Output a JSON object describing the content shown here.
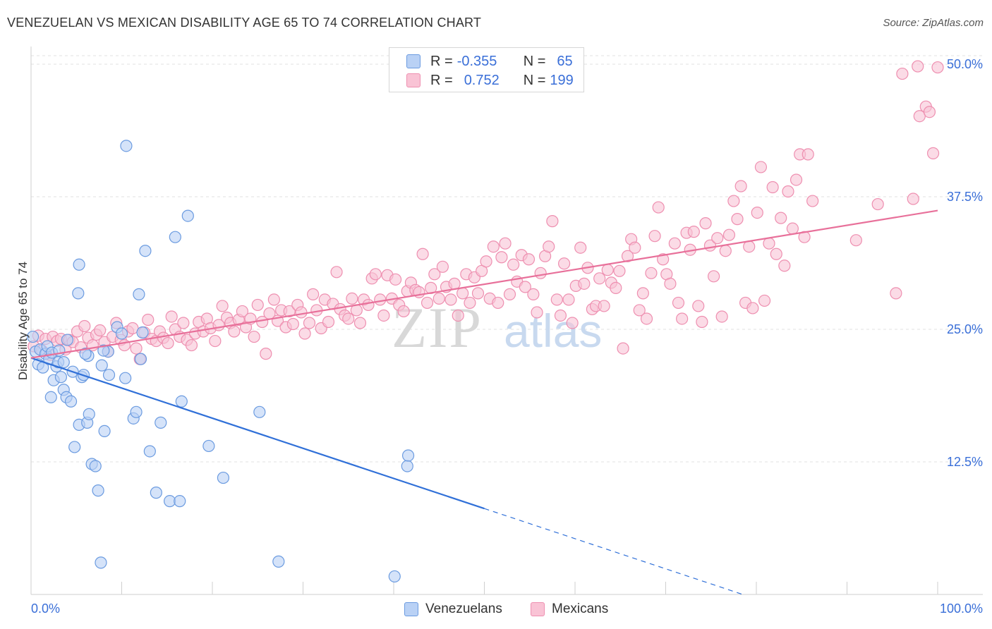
{
  "title": "VENEZUELAN VS MEXICAN DISABILITY AGE 65 TO 74 CORRELATION CHART",
  "source": "Source: ZipAtlas.com",
  "watermark": {
    "zip": "ZIP",
    "atlas": "atlas"
  },
  "legend": {
    "r_label": "R =",
    "n_label": "N =",
    "rows": [
      {
        "r": "-0.355",
        "n": "65",
        "fill": "#b9d1f5",
        "stroke": "#6b9be0"
      },
      {
        "r": "0.752",
        "n": "199",
        "fill": "#f9c3d5",
        "stroke": "#ee8fb0"
      }
    ]
  },
  "bottom_legend": [
    {
      "label": "Venezuelans",
      "fill": "#b9d1f5",
      "stroke": "#6b9be0"
    },
    {
      "label": "Mexicans",
      "fill": "#f9c3d5",
      "stroke": "#ee8fb0"
    }
  ],
  "chart_data": {
    "type": "scatter",
    "title": "VENEZUELAN VS MEXICAN DISABILITY AGE 65 TO 74 CORRELATION CHART",
    "xlabel": "",
    "ylabel": "Disability Age 65 to 74",
    "xlim": [
      0,
      100
    ],
    "ylim": [
      0,
      51
    ],
    "x_tick_labels": [
      "0.0%",
      "100.0%"
    ],
    "y_ticks": [
      12.5,
      25.0,
      37.5,
      50.0
    ],
    "y_tick_labels": [
      "12.5%",
      "25.0%",
      "37.5%",
      "50.0%"
    ],
    "grid": true,
    "series": [
      {
        "name": "Venezuelans",
        "color": "#6b9be0",
        "fill": "#b9d1f5",
        "trend_color": "#3070d8",
        "trend": {
          "x0": 0,
          "y0": 22.3,
          "x1": 50,
          "y1": 8.1,
          "dash_x1": 78.5,
          "dash_y1": 0
        },
        "points": [
          [
            0.2,
            24.3
          ],
          [
            0.5,
            22.9
          ],
          [
            0.8,
            21.7
          ],
          [
            1.0,
            23.1
          ],
          [
            1.3,
            21.4
          ],
          [
            1.6,
            22.7
          ],
          [
            1.8,
            23.4
          ],
          [
            2.0,
            22.2
          ],
          [
            2.3,
            22.8
          ],
          [
            2.5,
            20.2
          ],
          [
            2.2,
            18.6
          ],
          [
            2.8,
            21.5
          ],
          [
            3.0,
            21.9
          ],
          [
            3.3,
            20.5
          ],
          [
            3.6,
            19.3
          ],
          [
            3.9,
            18.6
          ],
          [
            3.6,
            21.9
          ],
          [
            4.4,
            18.2
          ],
          [
            4.6,
            21.0
          ],
          [
            4.8,
            13.9
          ],
          [
            5.3,
            16.0
          ],
          [
            5.6,
            20.5
          ],
          [
            5.8,
            20.7
          ],
          [
            6.2,
            16.2
          ],
          [
            6.4,
            17.0
          ],
          [
            6.7,
            12.3
          ],
          [
            7.1,
            12.1
          ],
          [
            7.4,
            9.8
          ],
          [
            7.8,
            21.6
          ],
          [
            8.1,
            15.4
          ],
          [
            8.5,
            22.9
          ],
          [
            8.6,
            20.7
          ],
          [
            6.3,
            22.5
          ],
          [
            6.0,
            22.7
          ],
          [
            9.5,
            25.2
          ],
          [
            10.0,
            24.6
          ],
          [
            10.4,
            20.4
          ],
          [
            11.3,
            16.6
          ],
          [
            11.6,
            17.2
          ],
          [
            12.1,
            22.2
          ],
          [
            12.3,
            24.7
          ],
          [
            13.1,
            13.5
          ],
          [
            13.8,
            9.6
          ],
          [
            14.3,
            16.2
          ],
          [
            15.3,
            8.8
          ],
          [
            16.4,
            8.8
          ],
          [
            16.6,
            18.2
          ],
          [
            19.6,
            14.0
          ],
          [
            21.2,
            11.0
          ],
          [
            25.2,
            17.2
          ],
          [
            27.3,
            3.1
          ],
          [
            7.7,
            3.0
          ],
          [
            40.1,
            1.7
          ],
          [
            41.5,
            12.1
          ],
          [
            41.6,
            13.1
          ],
          [
            10.5,
            42.3
          ],
          [
            11.9,
            28.3
          ],
          [
            12.6,
            32.4
          ],
          [
            15.9,
            33.7
          ],
          [
            17.3,
            35.7
          ],
          [
            5.3,
            31.1
          ],
          [
            5.2,
            28.4
          ],
          [
            4.0,
            24.0
          ],
          [
            3.1,
            23.0
          ],
          [
            8.0,
            23.0
          ]
        ]
      },
      {
        "name": "Mexicans",
        "color": "#ee8fb0",
        "fill": "#f9c3d5",
        "trend_color": "#e8709a",
        "trend": {
          "x0": 0,
          "y0": 22.3,
          "x1": 100,
          "y1": 36.2
        },
        "points": [
          [
            0.3,
            23.4
          ],
          [
            0.8,
            24.4
          ],
          [
            1.2,
            23.0
          ],
          [
            1.6,
            24.1
          ],
          [
            2.1,
            22.6
          ],
          [
            2.4,
            24.3
          ],
          [
            2.9,
            23.9
          ],
          [
            3.3,
            24.1
          ],
          [
            3.8,
            23.1
          ],
          [
            4.2,
            24.0
          ],
          [
            4.6,
            23.8
          ],
          [
            5.1,
            24.8
          ],
          [
            5.5,
            23.3
          ],
          [
            5.9,
            25.3
          ],
          [
            6.3,
            24.2
          ],
          [
            6.8,
            23.5
          ],
          [
            7.2,
            24.5
          ],
          [
            7.6,
            24.9
          ],
          [
            8.1,
            23.8
          ],
          [
            8.5,
            22.9
          ],
          [
            9.0,
            24.3
          ],
          [
            9.4,
            25.6
          ],
          [
            9.9,
            24.0
          ],
          [
            10.3,
            23.5
          ],
          [
            10.7,
            24.8
          ],
          [
            11.2,
            25.1
          ],
          [
            11.6,
            23.2
          ],
          [
            12.0,
            22.2
          ],
          [
            12.5,
            24.7
          ],
          [
            12.9,
            25.9
          ],
          [
            13.3,
            24.1
          ],
          [
            13.8,
            23.9
          ],
          [
            14.2,
            24.8
          ],
          [
            14.6,
            24.2
          ],
          [
            15.1,
            23.7
          ],
          [
            15.5,
            26.2
          ],
          [
            15.9,
            25.0
          ],
          [
            16.4,
            24.3
          ],
          [
            16.8,
            25.6
          ],
          [
            17.2,
            24.0
          ],
          [
            17.7,
            23.5
          ],
          [
            18.1,
            24.6
          ],
          [
            18.5,
            25.7
          ],
          [
            19.0,
            24.8
          ],
          [
            19.4,
            26.0
          ],
          [
            19.8,
            25.1
          ],
          [
            20.3,
            23.9
          ],
          [
            20.7,
            25.4
          ],
          [
            21.1,
            27.2
          ],
          [
            21.6,
            26.1
          ],
          [
            22.0,
            25.6
          ],
          [
            22.4,
            24.8
          ],
          [
            22.9,
            25.9
          ],
          [
            23.3,
            26.7
          ],
          [
            23.7,
            25.2
          ],
          [
            24.2,
            26.0
          ],
          [
            24.6,
            24.3
          ],
          [
            25.0,
            27.3
          ],
          [
            25.5,
            25.7
          ],
          [
            25.9,
            22.7
          ],
          [
            26.3,
            26.5
          ],
          [
            26.8,
            27.8
          ],
          [
            27.2,
            25.8
          ],
          [
            27.6,
            26.8
          ],
          [
            28.1,
            25.2
          ],
          [
            28.5,
            26.7
          ],
          [
            28.9,
            25.5
          ],
          [
            29.4,
            27.3
          ],
          [
            29.8,
            26.6
          ],
          [
            30.2,
            24.6
          ],
          [
            30.7,
            25.6
          ],
          [
            31.1,
            28.3
          ],
          [
            31.5,
            26.8
          ],
          [
            32.0,
            25.1
          ],
          [
            32.4,
            27.8
          ],
          [
            32.8,
            25.7
          ],
          [
            33.3,
            27.4
          ],
          [
            33.7,
            30.4
          ],
          [
            34.1,
            26.9
          ],
          [
            34.6,
            26.3
          ],
          [
            35.0,
            26.0
          ],
          [
            35.4,
            27.9
          ],
          [
            35.9,
            26.8
          ],
          [
            36.3,
            25.6
          ],
          [
            36.7,
            27.8
          ],
          [
            37.2,
            27.3
          ],
          [
            37.6,
            29.8
          ],
          [
            38.0,
            30.2
          ],
          [
            38.5,
            27.8
          ],
          [
            38.9,
            26.3
          ],
          [
            39.3,
            30.1
          ],
          [
            39.8,
            27.9
          ],
          [
            40.2,
            29.7
          ],
          [
            40.6,
            27.3
          ],
          [
            41.1,
            26.7
          ],
          [
            41.5,
            28.6
          ],
          [
            41.9,
            29.4
          ],
          [
            42.4,
            28.7
          ],
          [
            42.8,
            28.5
          ],
          [
            43.2,
            32.1
          ],
          [
            43.7,
            27.5
          ],
          [
            44.1,
            28.9
          ],
          [
            44.5,
            30.2
          ],
          [
            45.0,
            27.9
          ],
          [
            45.4,
            30.9
          ],
          [
            45.8,
            29.0
          ],
          [
            46.3,
            27.8
          ],
          [
            46.7,
            29.3
          ],
          [
            47.1,
            26.3
          ],
          [
            47.6,
            28.4
          ],
          [
            48.0,
            30.2
          ],
          [
            48.4,
            27.5
          ],
          [
            48.9,
            29.9
          ],
          [
            49.3,
            28.4
          ],
          [
            49.7,
            30.5
          ],
          [
            50.2,
            31.4
          ],
          [
            50.6,
            27.9
          ],
          [
            51.0,
            32.8
          ],
          [
            51.5,
            27.5
          ],
          [
            51.9,
            31.8
          ],
          [
            52.3,
            33.1
          ],
          [
            52.8,
            28.3
          ],
          [
            53.2,
            31.1
          ],
          [
            53.6,
            29.5
          ],
          [
            54.1,
            32.0
          ],
          [
            54.5,
            29.0
          ],
          [
            54.9,
            31.6
          ],
          [
            55.4,
            28.3
          ],
          [
            55.8,
            26.6
          ],
          [
            56.2,
            30.3
          ],
          [
            56.7,
            31.9
          ],
          [
            57.1,
            32.8
          ],
          [
            57.5,
            35.2
          ],
          [
            58.0,
            27.8
          ],
          [
            58.4,
            26.3
          ],
          [
            58.8,
            31.2
          ],
          [
            59.3,
            27.8
          ],
          [
            59.7,
            25.6
          ],
          [
            60.1,
            29.1
          ],
          [
            60.6,
            32.7
          ],
          [
            61.0,
            29.3
          ],
          [
            61.4,
            30.8
          ],
          [
            61.9,
            26.9
          ],
          [
            62.3,
            27.2
          ],
          [
            62.7,
            29.8
          ],
          [
            63.2,
            27.2
          ],
          [
            63.6,
            30.6
          ],
          [
            64.0,
            29.4
          ],
          [
            64.5,
            28.9
          ],
          [
            64.9,
            30.5
          ],
          [
            65.3,
            23.2
          ],
          [
            65.8,
            31.9
          ],
          [
            66.2,
            33.5
          ],
          [
            66.6,
            32.7
          ],
          [
            67.1,
            26.8
          ],
          [
            67.5,
            28.4
          ],
          [
            67.9,
            26.0
          ],
          [
            68.4,
            30.3
          ],
          [
            68.8,
            33.8
          ],
          [
            69.2,
            36.5
          ],
          [
            69.7,
            31.6
          ],
          [
            70.1,
            30.2
          ],
          [
            70.5,
            29.3
          ],
          [
            71.0,
            33.1
          ],
          [
            71.4,
            27.5
          ],
          [
            71.8,
            26.0
          ],
          [
            72.3,
            34.1
          ],
          [
            72.7,
            32.5
          ],
          [
            73.1,
            34.2
          ],
          [
            73.6,
            27.2
          ],
          [
            74.0,
            25.7
          ],
          [
            74.4,
            35.0
          ],
          [
            74.9,
            32.9
          ],
          [
            75.3,
            30.0
          ],
          [
            75.7,
            33.6
          ],
          [
            76.2,
            26.2
          ],
          [
            76.6,
            32.4
          ],
          [
            77.0,
            33.9
          ],
          [
            77.5,
            37.1
          ],
          [
            77.9,
            35.4
          ],
          [
            78.3,
            38.5
          ],
          [
            78.8,
            27.5
          ],
          [
            79.2,
            32.8
          ],
          [
            79.6,
            27.0
          ],
          [
            80.1,
            36.0
          ],
          [
            80.5,
            40.3
          ],
          [
            80.9,
            27.7
          ],
          [
            81.4,
            33.1
          ],
          [
            81.8,
            38.4
          ],
          [
            82.2,
            32.1
          ],
          [
            82.7,
            35.5
          ],
          [
            83.1,
            31.0
          ],
          [
            83.5,
            38.0
          ],
          [
            84.0,
            34.5
          ],
          [
            84.4,
            39.1
          ],
          [
            84.8,
            41.5
          ],
          [
            85.3,
            33.7
          ],
          [
            85.7,
            41.5
          ],
          [
            86.2,
            37.1
          ],
          [
            96.1,
            49.1
          ],
          [
            97.8,
            49.8
          ],
          [
            98.0,
            45.1
          ],
          [
            98.7,
            46.0
          ],
          [
            99.1,
            45.5
          ],
          [
            100.0,
            49.7
          ],
          [
            99.5,
            41.6
          ],
          [
            95.4,
            28.4
          ],
          [
            97.3,
            37.3
          ],
          [
            93.4,
            36.8
          ],
          [
            91.0,
            33.4
          ]
        ]
      }
    ]
  }
}
